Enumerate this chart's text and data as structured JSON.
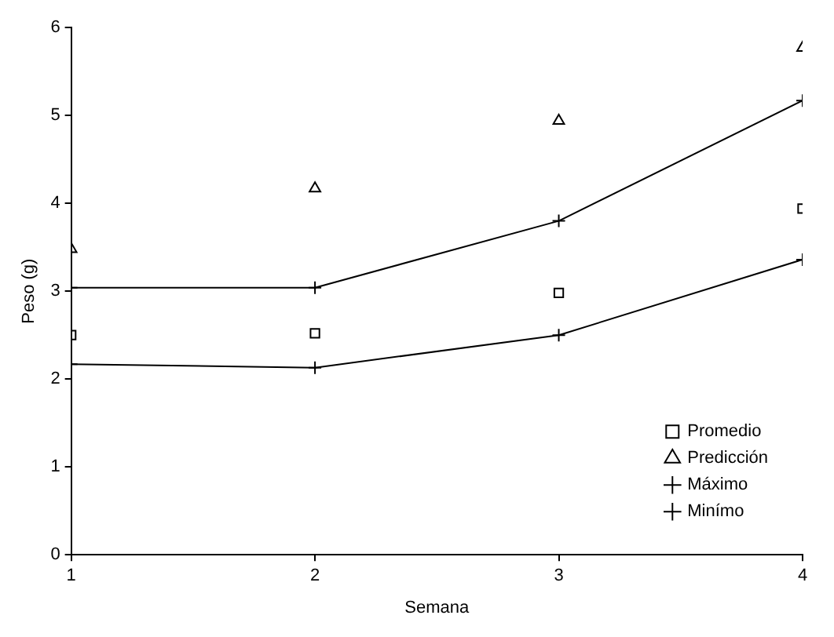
{
  "chart_data": {
    "type": "line",
    "xlabel": "Semana",
    "ylabel": "Peso (g)",
    "x": [
      1,
      2,
      3,
      4
    ],
    "xlim": [
      1,
      4
    ],
    "xticks": [
      1,
      2,
      3,
      4
    ],
    "ylim": [
      0,
      6
    ],
    "yticks": [
      0,
      1,
      2,
      3,
      4,
      5,
      6
    ],
    "grid": false,
    "legend": "bottom right",
    "series": [
      {
        "name": "Promedio",
        "type": "scatter",
        "marker": "square",
        "color": "#000000",
        "values": [
          2.5,
          2.52,
          2.98,
          3.94
        ]
      },
      {
        "name": "Predicción",
        "type": "scatter",
        "marker": "triangle",
        "color": "#000000",
        "values": [
          3.48,
          4.17,
          4.94,
          5.77
        ]
      },
      {
        "name": "Máximo",
        "type": "line",
        "marker": "cross",
        "color": "#000000",
        "values": [
          3.04,
          3.04,
          3.8,
          5.17
        ]
      },
      {
        "name": "Minímo",
        "type": "line",
        "marker": "cross",
        "color": "#000000",
        "values": [
          2.17,
          2.13,
          2.5,
          3.36
        ]
      }
    ]
  }
}
